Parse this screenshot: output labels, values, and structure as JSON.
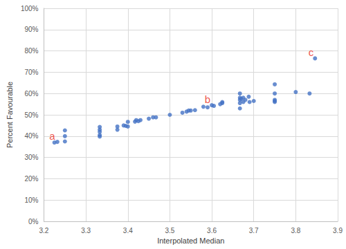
{
  "chart_data": {
    "type": "scatter",
    "x_label": "Interpolated Median",
    "y_label": "Percent Favourable",
    "color": "#4472c4",
    "marker": "circle",
    "grid": true,
    "xlim": [
      3.2,
      3.9
    ],
    "xticks": [
      3.2,
      3.3,
      3.4,
      3.5,
      3.6,
      3.7,
      3.8,
      3.9
    ],
    "ylim": [
      0,
      100
    ],
    "yticks": [
      {
        "value": 0,
        "label": "0%"
      },
      {
        "value": 10,
        "label": "10%"
      },
      {
        "value": 20,
        "label": "20%"
      },
      {
        "value": 30,
        "label": "30%"
      },
      {
        "value": 40,
        "label": "40%"
      },
      {
        "value": 50,
        "label": "50%"
      },
      {
        "value": 60,
        "label": "60%"
      },
      {
        "value": 70,
        "label": "70%"
      },
      {
        "value": 80,
        "label": "80%"
      },
      {
        "value": 90,
        "label": "90%"
      },
      {
        "value": 100,
        "label": "100%"
      }
    ],
    "x": [
      3.225,
      3.232,
      3.25,
      3.25,
      3.25,
      3.333,
      3.333,
      3.333,
      3.333,
      3.333,
      3.375,
      3.375,
      3.39,
      3.395,
      3.4,
      3.4,
      3.417,
      3.42,
      3.425,
      3.43,
      3.45,
      3.46,
      3.467,
      3.5,
      3.53,
      3.54,
      3.545,
      3.55,
      3.56,
      3.58,
      3.59,
      3.6,
      3.605,
      3.62,
      3.625,
      3.625,
      3.667,
      3.667,
      3.667,
      3.667,
      3.667,
      3.67,
      3.675,
      3.675,
      3.68,
      3.688,
      3.69,
      3.7,
      3.75,
      3.75,
      3.75,
      3.75,
      3.75,
      3.8,
      3.833,
      3.846
    ],
    "values": [
      37,
      37.3,
      42.7,
      40,
      37.5,
      44.3,
      43,
      42,
      40.5,
      39.8,
      44.5,
      43,
      45,
      44.8,
      46.7,
      44.5,
      46.8,
      47.5,
      47,
      47.5,
      48.2,
      48.8,
      48.8,
      50,
      51,
      51.5,
      52,
      52,
      52.2,
      53.8,
      53.5,
      54.5,
      54.2,
      55,
      55.5,
      56,
      60,
      58,
      57,
      55.5,
      53,
      57.5,
      58,
      56,
      57,
      58.5,
      56,
      56.5,
      64.3,
      60,
      57,
      56,
      56.5,
      60.7,
      60,
      76.5
    ],
    "annotations": [
      {
        "text": "a",
        "x": 3.23,
        "y": 37.3
      },
      {
        "text": "b",
        "x": 3.6,
        "y": 54.5
      },
      {
        "text": "c",
        "x": 3.846,
        "y": 76.5
      }
    ]
  }
}
